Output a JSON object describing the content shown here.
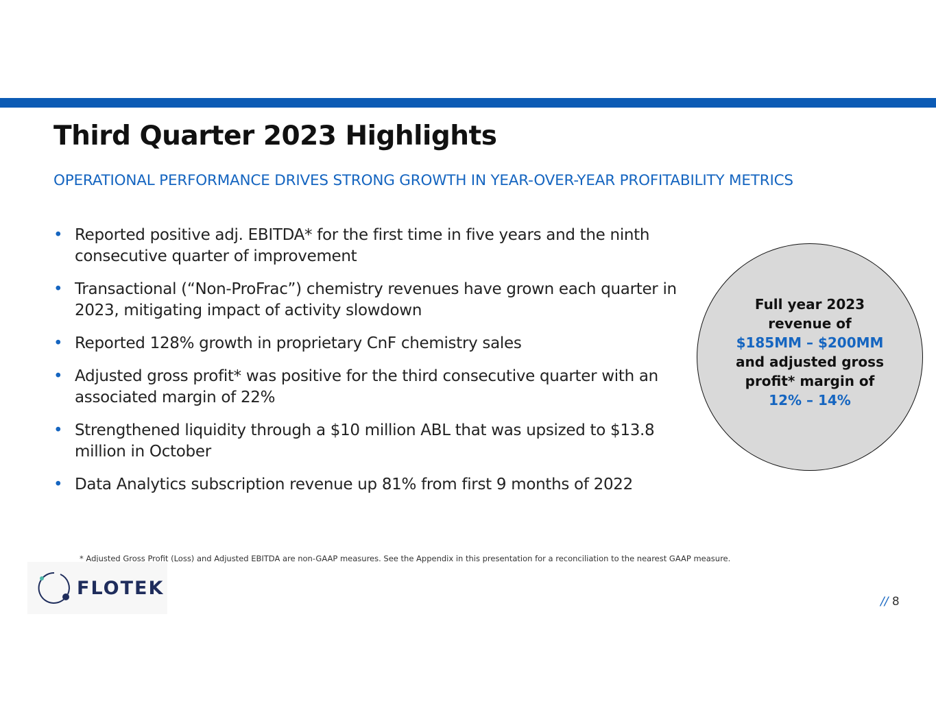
{
  "slide": {
    "title": "Third Quarter 2023 Highlights",
    "subtitle": "OPERATIONAL PERFORMANCE DRIVES STRONG GROWTH IN YEAR-OVER-YEAR PROFITABILITY METRICS",
    "bullets": [
      "Reported positive adj. EBITDA* for the first time in five years and the ninth consecutive quarter of improvement",
      "Transactional (“Non-ProFrac”) chemistry revenues have grown each quarter in 2023, mitigating impact of activity slowdown",
      "Reported 128% growth in proprietary CnF chemistry sales",
      "Adjusted gross profit* was positive for the third consecutive quarter with an associated margin of 22%",
      "Strengthened liquidity through a $10 million ABL that was upsized to $13.8 million in October",
      "Data Analytics subscription revenue up 81% from first 9 months of 2022"
    ],
    "bullet_char": "•",
    "callout": {
      "line1": "Full year 2023",
      "line2": "revenue of",
      "line3": "$185MM – $200MM",
      "line4": "and adjusted gross",
      "line5": "profit* margin of",
      "line6": "12% – 14%"
    },
    "footnote": "* Adjusted Gross Profit (Loss) and Adjusted EBITDA are non-GAAP measures.  See the Appendix in this presentation for a reconciliation to the nearest GAAP measure.",
    "logo_text": "FLOTEK",
    "page_prefix": "//",
    "page_number": "8"
  },
  "colors": {
    "accent": "#0c5bb5",
    "text_blue": "#1565c0",
    "circle_fill": "#d9d9d9",
    "logo_navy": "#1f2d5c"
  }
}
